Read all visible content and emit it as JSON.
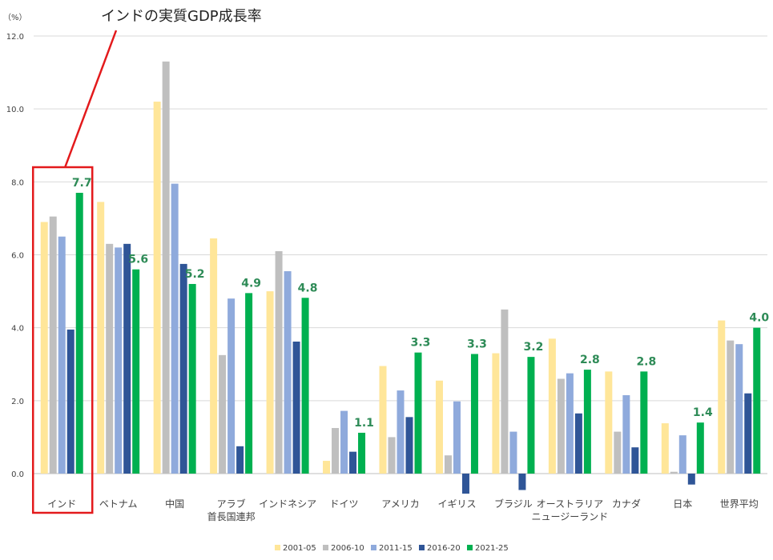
{
  "chart_data": {
    "type": "bar",
    "title": "インドの実質GDP成長率",
    "unit_label": "（%）",
    "ylim": [
      0,
      12
    ],
    "yticks": [
      "12.0",
      "10.0",
      "8.0",
      "6.0",
      "4.0",
      "2.0",
      "0.0"
    ],
    "grid": true,
    "legend_position": "bottom",
    "categories": [
      [
        "インド"
      ],
      [
        "ベトナム"
      ],
      [
        "中国"
      ],
      [
        "アラブ",
        "首長国連邦"
      ],
      [
        "インドネシア"
      ],
      [
        "ドイツ"
      ],
      [
        "アメリカ"
      ],
      [
        "イギリス"
      ],
      [
        "ブラジル"
      ],
      [
        "オーストラリア",
        "ニュージーランド"
      ],
      [
        "カナダ"
      ],
      [
        "日本"
      ],
      [
        "世界平均"
      ]
    ],
    "series": [
      {
        "name": "2001-05",
        "color": "#ffe699",
        "values": [
          6.9,
          7.45,
          10.2,
          6.45,
          5.0,
          0.35,
          2.95,
          2.55,
          3.3,
          3.7,
          2.8,
          1.38,
          4.2
        ]
      },
      {
        "name": "2006-10",
        "color": "#bfbfbf",
        "values": [
          7.05,
          6.3,
          11.3,
          3.25,
          6.1,
          1.25,
          1.0,
          0.5,
          4.5,
          2.6,
          1.15,
          0.05,
          3.65
        ]
      },
      {
        "name": "2011-15",
        "color": "#8faadc",
        "values": [
          6.5,
          6.2,
          7.95,
          4.8,
          5.55,
          1.72,
          2.28,
          1.98,
          1.15,
          2.75,
          2.15,
          1.05,
          3.55
        ]
      },
      {
        "name": "2016-20",
        "color": "#2f5597",
        "values": [
          3.95,
          6.3,
          5.75,
          0.75,
          3.62,
          0.6,
          1.55,
          -0.55,
          -0.45,
          1.65,
          0.72,
          -0.3,
          2.2
        ]
      },
      {
        "name": "2021-25",
        "color": "#00b050",
        "values": [
          7.7,
          5.6,
          5.2,
          4.95,
          4.82,
          1.12,
          3.32,
          3.28,
          3.2,
          2.85,
          2.8,
          1.4,
          4.0
        ]
      }
    ],
    "data_labels": [
      "7.7",
      "5.6",
      "5.2",
      "4.9",
      "4.8",
      "1.1",
      "3.3",
      "3.3",
      "3.2",
      "2.8",
      "2.8",
      "1.4",
      "4.0"
    ],
    "highlight_color": "#e31a1c"
  }
}
